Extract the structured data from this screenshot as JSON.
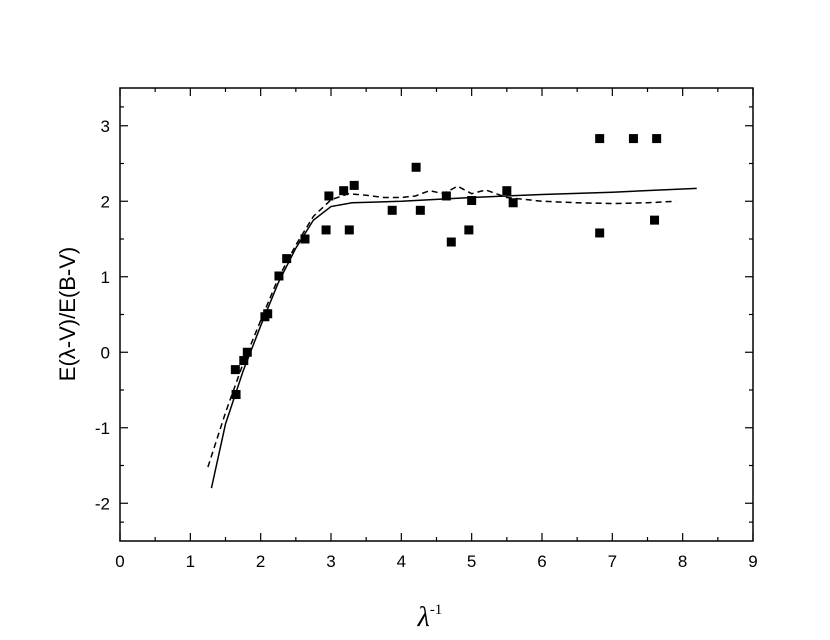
{
  "chart_data": {
    "type": "scatter",
    "xlabel": "λ",
    "xlabel_sup": "-1",
    "ylabel": "E(λ-V)/E(B-V)",
    "xlim": [
      0,
      9
    ],
    "xticks": [
      0,
      1,
      2,
      3,
      4,
      5,
      6,
      7,
      8,
      9
    ],
    "ylim": [
      -2.5,
      3.5
    ],
    "yticks": [
      -2,
      -1,
      0,
      1,
      2,
      3
    ],
    "grid": false,
    "series": [
      {
        "style": "markers",
        "color": "#000000",
        "x": [
          1.64,
          1.65,
          1.76,
          1.81,
          2.06,
          2.1,
          2.26,
          2.37,
          2.63,
          2.93,
          2.97,
          3.18,
          3.26,
          3.33,
          3.87,
          4.21,
          4.27,
          4.64,
          4.71,
          4.96,
          5.0,
          5.5,
          5.59,
          6.82,
          6.82,
          7.3,
          7.63,
          7.6
        ],
        "values": [
          -0.23,
          -0.56,
          -0.11,
          0.0,
          0.47,
          0.51,
          1.01,
          1.24,
          1.5,
          1.62,
          2.07,
          2.14,
          1.62,
          2.21,
          1.88,
          2.45,
          1.88,
          2.07,
          1.46,
          1.62,
          2.01,
          2.14,
          1.98,
          2.83,
          1.58,
          2.83,
          2.83,
          1.75
        ]
      },
      {
        "style": "solid",
        "color": "#000000",
        "x": [
          1.3,
          1.5,
          1.75,
          2.0,
          2.25,
          2.5,
          2.75,
          3.0,
          3.3,
          4.0,
          5.0,
          6.0,
          7.0,
          8.2
        ],
        "values": [
          -1.8,
          -0.95,
          -0.25,
          0.35,
          0.92,
          1.38,
          1.75,
          1.93,
          1.98,
          2.0,
          2.05,
          2.09,
          2.12,
          2.17
        ]
      },
      {
        "style": "dashed",
        "color": "#000000",
        "x": [
          1.25,
          1.5,
          1.75,
          2.0,
          2.25,
          2.5,
          2.75,
          3.0,
          3.25,
          3.5,
          3.75,
          4.0,
          4.2,
          4.4,
          4.6,
          4.8,
          5.0,
          5.2,
          5.5,
          6.0,
          6.5,
          7.0,
          7.5,
          7.9
        ],
        "values": [
          -1.52,
          -0.8,
          -0.15,
          0.42,
          0.98,
          1.42,
          1.8,
          2.02,
          2.1,
          2.08,
          2.05,
          2.05,
          2.07,
          2.14,
          2.1,
          2.2,
          2.1,
          2.15,
          2.05,
          2.0,
          1.98,
          1.97,
          1.98,
          2.0
        ]
      }
    ]
  }
}
